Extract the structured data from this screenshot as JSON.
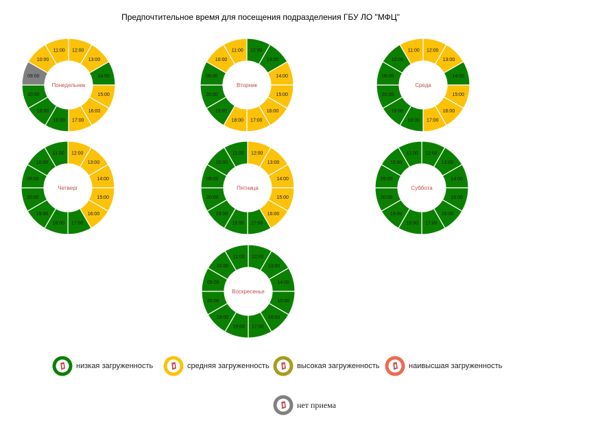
{
  "page": {
    "title": "Предпочтительное время для посещения подразделения ГБУ ЛО \"МФЦ\""
  },
  "colors": {
    "low": "#0b8000",
    "medium": "#fcc20a",
    "high": "#a89b1e",
    "highest": "#ee6a4f",
    "closed": "#808080",
    "day_label": "#c0504d"
  },
  "hours": [
    "12:00",
    "13:00",
    "14:00",
    "15:00",
    "16:00",
    "17:00",
    "18:00",
    "19:00",
    "20:00",
    "09:00",
    "10:00",
    "11:00"
  ],
  "days": [
    {
      "name": "Понедельник",
      "load": [
        "medium",
        "medium",
        "low",
        "medium",
        "medium",
        "medium",
        "low",
        "low",
        "low",
        "closed",
        "medium",
        "medium"
      ]
    },
    {
      "name": "Вторник",
      "load": [
        "low",
        "low",
        "medium",
        "medium",
        "medium",
        "medium",
        "medium",
        "low",
        "low",
        "low",
        "medium",
        "medium"
      ]
    },
    {
      "name": "Среда",
      "load": [
        "medium",
        "medium",
        "low",
        "medium",
        "medium",
        "medium",
        "low",
        "low",
        "low",
        "low",
        "low",
        "medium"
      ]
    },
    {
      "name": "Четверг",
      "load": [
        "medium",
        "medium",
        "medium",
        "medium",
        "medium",
        "low",
        "low",
        "low",
        "low",
        "low",
        "low",
        "low"
      ]
    },
    {
      "name": "Пятница",
      "load": [
        "medium",
        "medium",
        "medium",
        "medium",
        "medium",
        "low",
        "low",
        "low",
        "low",
        "low",
        "low",
        "low"
      ]
    },
    {
      "name": "Суббота",
      "load": [
        "low",
        "low",
        "low",
        "low",
        "low",
        "low",
        "low",
        "low",
        "low",
        "low",
        "low",
        "low"
      ]
    },
    {
      "name": "Воскресенье",
      "load": [
        "low",
        "low",
        "low",
        "low",
        "low",
        "low",
        "low",
        "low",
        "low",
        "low",
        "low",
        "low"
      ]
    }
  ],
  "legend": [
    {
      "key": "low",
      "label": "низкая загруженность"
    },
    {
      "key": "medium",
      "label": "средняя загруженность"
    },
    {
      "key": "high",
      "label": "высокая загруженность"
    },
    {
      "key": "highest",
      "label": "наивысшая загруженность"
    },
    {
      "key": "closed",
      "label": "нет приема"
    }
  ]
}
